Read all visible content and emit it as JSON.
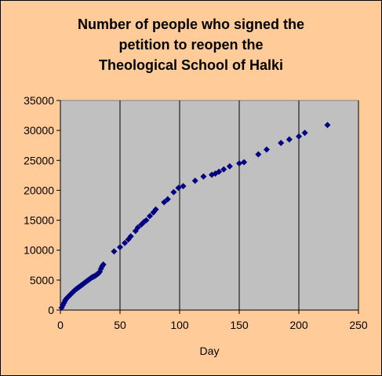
{
  "chart_data": {
    "type": "scatter",
    "title_lines": [
      "Number of people who signed the",
      "petition to reopen the",
      "Theological School of Halki"
    ],
    "xlabel": "Day",
    "ylabel": "",
    "xlim": [
      0,
      250
    ],
    "ylim": [
      0,
      35000
    ],
    "x_ticks": [
      0,
      50,
      100,
      150,
      200,
      250
    ],
    "y_ticks": [
      0,
      5000,
      10000,
      15000,
      20000,
      25000,
      30000,
      35000
    ],
    "grid": "vertical",
    "legend": "none",
    "colors": {
      "background": "#ffcc99",
      "plot_area": "#c0c0c0",
      "marker": "#000080",
      "grid": "#000000"
    },
    "points": [
      [
        1,
        400
      ],
      [
        2,
        800
      ],
      [
        3,
        1200
      ],
      [
        4,
        1600
      ],
      [
        5,
        1900
      ],
      [
        6,
        2100
      ],
      [
        7,
        2300
      ],
      [
        8,
        2500
      ],
      [
        9,
        2700
      ],
      [
        10,
        2900
      ],
      [
        11,
        3100
      ],
      [
        12,
        3300
      ],
      [
        13,
        3450
      ],
      [
        14,
        3600
      ],
      [
        15,
        3750
      ],
      [
        16,
        3900
      ],
      [
        17,
        4050
      ],
      [
        18,
        4200
      ],
      [
        19,
        4350
      ],
      [
        20,
        4500
      ],
      [
        21,
        4650
      ],
      [
        22,
        4800
      ],
      [
        23,
        4950
      ],
      [
        24,
        5100
      ],
      [
        25,
        5250
      ],
      [
        26,
        5400
      ],
      [
        27,
        5500
      ],
      [
        28,
        5600
      ],
      [
        29,
        5700
      ],
      [
        30,
        5850
      ],
      [
        31,
        6000
      ],
      [
        32,
        6150
      ],
      [
        33,
        6400
      ],
      [
        34,
        6900
      ],
      [
        35,
        7300
      ],
      [
        36,
        7600
      ],
      [
        45,
        9800
      ],
      [
        50,
        10500
      ],
      [
        54,
        11200
      ],
      [
        57,
        11800
      ],
      [
        59,
        12300
      ],
      [
        63,
        13200
      ],
      [
        65,
        13800
      ],
      [
        68,
        14300
      ],
      [
        70,
        14700
      ],
      [
        72,
        15000
      ],
      [
        75,
        15700
      ],
      [
        78,
        16300
      ],
      [
        80,
        16800
      ],
      [
        87,
        18000
      ],
      [
        90,
        18500
      ],
      [
        95,
        19700
      ],
      [
        99,
        20400
      ],
      [
        103,
        20700
      ],
      [
        113,
        21600
      ],
      [
        120,
        22300
      ],
      [
        127,
        22600
      ],
      [
        130,
        22800
      ],
      [
        133,
        23100
      ],
      [
        137,
        23500
      ],
      [
        142,
        24000
      ],
      [
        150,
        24500
      ],
      [
        154,
        24700
      ],
      [
        166,
        26000
      ],
      [
        173,
        26800
      ],
      [
        185,
        27900
      ],
      [
        192,
        28500
      ],
      [
        200,
        29000
      ],
      [
        205,
        29600
      ],
      [
        224,
        30900
      ]
    ]
  }
}
